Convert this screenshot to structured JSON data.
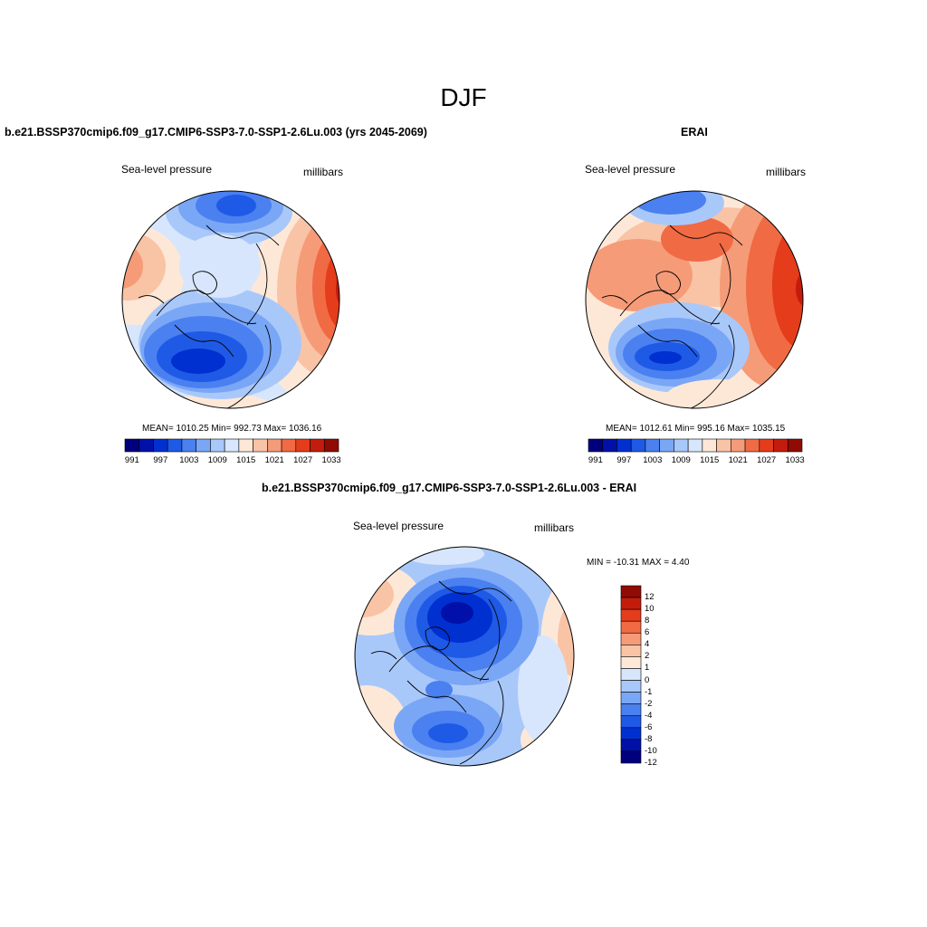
{
  "figure": {
    "title": "DJF"
  },
  "panels": [
    {
      "title": "b.e21.BSSP370cmip6.f09_g17.CMIP6-SSP3-7.0-SSP1-2.6Lu.003 (yrs 2045-2069)",
      "left_label": "Sea-level pressure",
      "right_label": "millibars",
      "stats": "MEAN= 1010.25  Min= 992.73  Max= 1036.16",
      "colorbar": {
        "colors": [
          "#00007f",
          "#0010a8",
          "#0030d0",
          "#1f5ae6",
          "#4a80f0",
          "#7aa6f6",
          "#a9c8fa",
          "#d7e6fc",
          "#fde8d8",
          "#f9c3a5",
          "#f59b78",
          "#f06a44",
          "#e53c1c",
          "#c41c0c",
          "#8f0b04"
        ],
        "tick_labels": [
          "991",
          "997",
          "1003",
          "1009",
          "1015",
          "1021",
          "1027",
          "1033"
        ]
      }
    },
    {
      "title": "ERAI",
      "left_label": "Sea-level pressure",
      "right_label": "millibars",
      "stats": "MEAN= 1012.61  Min= 995.16  Max= 1035.15",
      "colorbar": {
        "colors": [
          "#00007f",
          "#0010a8",
          "#0030d0",
          "#1f5ae6",
          "#4a80f0",
          "#7aa6f6",
          "#a9c8fa",
          "#d7e6fc",
          "#fde8d8",
          "#f9c3a5",
          "#f59b78",
          "#f06a44",
          "#e53c1c",
          "#c41c0c",
          "#8f0b04"
        ],
        "tick_labels": [
          "991",
          "997",
          "1003",
          "1009",
          "1015",
          "1021",
          "1027",
          "1033"
        ]
      }
    },
    {
      "title": "b.e21.BSSP370cmip6.f09_g17.CMIP6-SSP3-7.0-SSP1-2.6Lu.003 - ERAI",
      "left_label": "Sea-level pressure",
      "right_label": "millibars",
      "stats": "MIN = -10.31 MAX =   4.40",
      "colorbar": {
        "colors": [
          "#00007f",
          "#0010a8",
          "#0030d0",
          "#1f5ae6",
          "#4a80f0",
          "#7aa6f6",
          "#a9c8fa",
          "#d7e6fc",
          "#fde8d8",
          "#f9c3a5",
          "#f59b78",
          "#f06a44",
          "#e53c1c",
          "#c41c0c",
          "#8f0b04"
        ],
        "tick_labels": [
          "12",
          "10",
          "8",
          "6",
          "4",
          "2",
          "1",
          "0",
          "-1",
          "-2",
          "-4",
          "-6",
          "-8",
          "-10",
          "-12"
        ]
      }
    }
  ]
}
